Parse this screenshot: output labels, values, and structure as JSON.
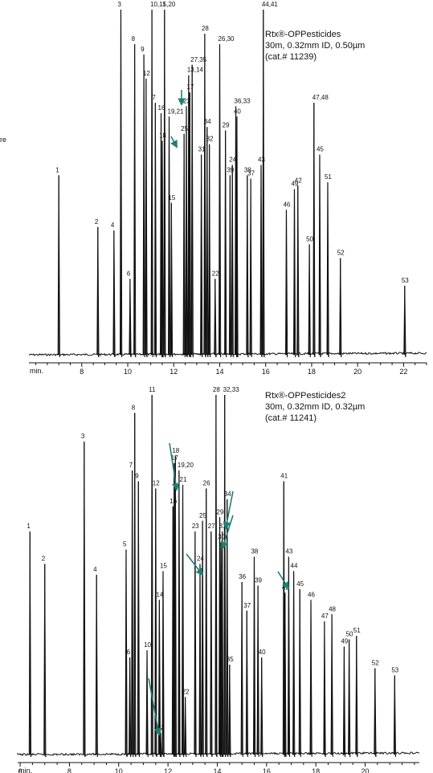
{
  "chart_data": [
    {
      "type": "line",
      "title": "Rtx®-OPPesticides",
      "info": [
        "30m, 0.32mm ID, 0.50µm",
        "(cat.# 11239)"
      ],
      "axis_prefix": "min.",
      "edge_text": "re",
      "xlim": [
        5.7,
        23.0
      ],
      "xticks": [
        8,
        10,
        12,
        14,
        16,
        18,
        20,
        22
      ],
      "ylim": [
        0,
        100
      ],
      "grid": false,
      "accent_color": "#1e7f74",
      "peaks": [
        {
          "label": "1",
          "x": 7.0,
          "y": 52
        },
        {
          "label": "2",
          "x": 8.7,
          "y": 37
        },
        {
          "label": "4",
          "x": 9.4,
          "y": 36
        },
        {
          "label": "3",
          "x": 9.7,
          "y": 100
        },
        {
          "label": "6",
          "x": 10.1,
          "y": 22
        },
        {
          "label": "8",
          "x": 10.3,
          "y": 90
        },
        {
          "label": "9",
          "x": 10.7,
          "y": 87
        },
        {
          "label": "12",
          "x": 10.8,
          "y": 80
        },
        {
          "label": "10,11",
          "x": 11.05,
          "y": 100
        },
        {
          "label": "7",
          "x": 11.2,
          "y": 73
        },
        {
          "label": "16",
          "x": 11.45,
          "y": 70
        },
        {
          "label": "18",
          "x": 11.5,
          "y": 62
        },
        {
          "label": "5,20",
          "x": 11.6,
          "y": 100
        },
        {
          "label": "19,21",
          "x": 11.8,
          "y": 69
        },
        {
          "label": "15",
          "x": 11.9,
          "y": 44
        },
        {
          "label": "25",
          "x": 12.45,
          "y": 64
        },
        {
          "label": "23",
          "x": 12.55,
          "y": 72
        },
        {
          "label": "13,14",
          "x": 12.65,
          "y": 81
        },
        {
          "label": "17",
          "x": 12.7,
          "y": 76
        },
        {
          "label": "27,35",
          "x": 12.8,
          "y": 84
        },
        {
          "label": "31",
          "x": 13.2,
          "y": 58
        },
        {
          "label": "28",
          "x": 13.35,
          "y": 93
        },
        {
          "label": "34",
          "x": 13.45,
          "y": 66
        },
        {
          "label": "32",
          "x": 13.55,
          "y": 61
        },
        {
          "label": "22",
          "x": 13.8,
          "y": 22
        },
        {
          "label": "26,30",
          "x": 14.0,
          "y": 90
        },
        {
          "label": "29",
          "x": 14.25,
          "y": 65
        },
        {
          "label": "39",
          "x": 14.45,
          "y": 52
        },
        {
          "label": "24",
          "x": 14.55,
          "y": 55
        },
        {
          "label": "36,33",
          "x": 14.7,
          "y": 72
        },
        {
          "label": "40",
          "x": 14.75,
          "y": 69
        },
        {
          "label": "38",
          "x": 15.2,
          "y": 52
        },
        {
          "label": "37",
          "x": 15.35,
          "y": 51
        },
        {
          "label": "43",
          "x": 15.8,
          "y": 55
        },
        {
          "label": "44,41",
          "x": 15.9,
          "y": 100
        },
        {
          "label": "46",
          "x": 16.9,
          "y": 42
        },
        {
          "label": "49",
          "x": 17.25,
          "y": 48
        },
        {
          "label": "42",
          "x": 17.4,
          "y": 49
        },
        {
          "label": "50",
          "x": 17.9,
          "y": 32
        },
        {
          "label": "47,48",
          "x": 18.1,
          "y": 73
        },
        {
          "label": "45",
          "x": 18.35,
          "y": 58
        },
        {
          "label": "51",
          "x": 18.7,
          "y": 50
        },
        {
          "label": "52",
          "x": 19.25,
          "y": 28
        },
        {
          "label": "53",
          "x": 22.05,
          "y": 20
        }
      ]
    },
    {
      "type": "line",
      "title": "Rtx®-OPPesticides2",
      "info": [
        "30m, 0.32mm ID, 0.32µm",
        "(cat.# 11241)"
      ],
      "axis_prefix": "min.",
      "xlim": [
        5.9,
        22.2
      ],
      "xticks": [
        6,
        8,
        10,
        12,
        14,
        16,
        18,
        20
      ],
      "ylim": [
        0,
        100
      ],
      "grid": false,
      "accent_color": "#1e7f74",
      "peaks": [
        {
          "label": "1",
          "x": 6.4,
          "y": 62
        },
        {
          "label": "2",
          "x": 7.0,
          "y": 53
        },
        {
          "label": "3",
          "x": 8.6,
          "y": 87
        },
        {
          "label": "4",
          "x": 9.1,
          "y": 50
        },
        {
          "label": "5",
          "x": 10.3,
          "y": 57
        },
        {
          "label": "6",
          "x": 10.45,
          "y": 27
        },
        {
          "label": "7",
          "x": 10.55,
          "y": 79
        },
        {
          "label": "8",
          "x": 10.65,
          "y": 95
        },
        {
          "label": "9",
          "x": 10.8,
          "y": 76
        },
        {
          "label": "10",
          "x": 11.15,
          "y": 29
        },
        {
          "label": "11",
          "x": 11.35,
          "y": 100
        },
        {
          "label": "12",
          "x": 11.5,
          "y": 74
        },
        {
          "label": "13",
          "x": 11.7,
          "y": 6
        },
        {
          "label": "14",
          "x": 11.65,
          "y": 43
        },
        {
          "label": "15",
          "x": 11.8,
          "y": 51
        },
        {
          "label": "16",
          "x": 12.2,
          "y": 69
        },
        {
          "label": "17",
          "x": 12.25,
          "y": 81
        },
        {
          "label": "18",
          "x": 12.3,
          "y": 83
        },
        {
          "label": "19,20",
          "x": 12.45,
          "y": 79
        },
        {
          "label": "21",
          "x": 12.6,
          "y": 75
        },
        {
          "label": "22",
          "x": 12.7,
          "y": 16
        },
        {
          "label": "23",
          "x": 13.1,
          "y": 62
        },
        {
          "label": "24",
          "x": 13.3,
          "y": 53
        },
        {
          "label": "25",
          "x": 13.4,
          "y": 65
        },
        {
          "label": "26",
          "x": 13.55,
          "y": 74
        },
        {
          "label": "27",
          "x": 13.75,
          "y": 62
        },
        {
          "label": "28",
          "x": 13.95,
          "y": 100
        },
        {
          "label": "29",
          "x": 14.1,
          "y": 66
        },
        {
          "label": "30",
          "x": 14.15,
          "y": 59
        },
        {
          "label": "31",
          "x": 14.2,
          "y": 62
        },
        {
          "label": "32,33",
          "x": 14.3,
          "y": 100
        },
        {
          "label": "34",
          "x": 14.4,
          "y": 71
        },
        {
          "label": "35",
          "x": 14.5,
          "y": 25
        },
        {
          "label": "36",
          "x": 15.0,
          "y": 48
        },
        {
          "label": "37",
          "x": 15.2,
          "y": 40
        },
        {
          "label": "38",
          "x": 15.5,
          "y": 55
        },
        {
          "label": "39",
          "x": 15.65,
          "y": 47
        },
        {
          "label": "40",
          "x": 15.8,
          "y": 27
        },
        {
          "label": "41",
          "x": 16.7,
          "y": 76
        },
        {
          "label": "42",
          "x": 16.75,
          "y": 45
        },
        {
          "label": "43",
          "x": 16.9,
          "y": 55
        },
        {
          "label": "44",
          "x": 17.1,
          "y": 51
        },
        {
          "label": "45",
          "x": 17.35,
          "y": 46
        },
        {
          "label": "46",
          "x": 17.8,
          "y": 43
        },
        {
          "label": "47",
          "x": 18.35,
          "y": 37
        },
        {
          "label": "48",
          "x": 18.65,
          "y": 39
        },
        {
          "label": "49",
          "x": 19.15,
          "y": 30
        },
        {
          "label": "50",
          "x": 19.35,
          "y": 32
        },
        {
          "label": "51",
          "x": 19.65,
          "y": 33
        },
        {
          "label": "52",
          "x": 20.4,
          "y": 24
        },
        {
          "label": "53",
          "x": 21.2,
          "y": 22
        }
      ]
    }
  ]
}
